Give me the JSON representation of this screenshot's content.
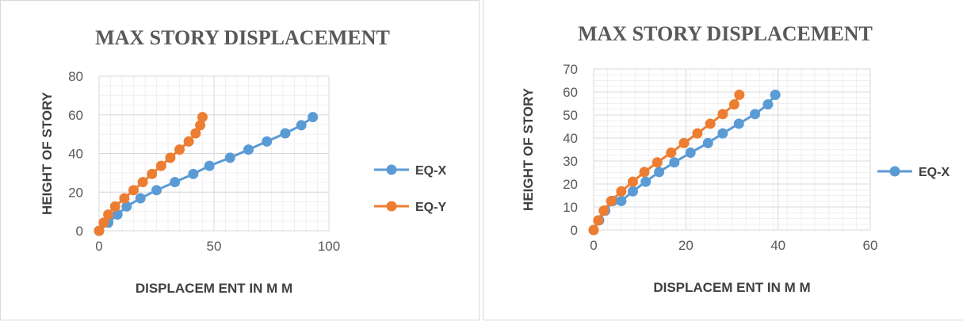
{
  "chart_data": [
    {
      "type": "scatter",
      "title": "MAX STORY DISPLACEMENT",
      "xlabel": "DISPLACEM ENT IN M M",
      "ylabel": "HEIGHT OF STORY",
      "xlim": [
        0,
        100
      ],
      "ylim": [
        0,
        80
      ],
      "xticks": [
        0,
        50,
        100
      ],
      "yticks": [
        0,
        20,
        40,
        60,
        80
      ],
      "grid": true,
      "legend_position": "right",
      "series": [
        {
          "name": "EQ-X",
          "color": "#5b9bd5",
          "x": [
            0,
            4,
            8,
            12,
            18,
            25,
            33,
            41,
            48,
            57,
            65,
            73,
            81,
            88,
            93
          ],
          "y": [
            0,
            4.2,
            8.4,
            12.6,
            16.8,
            21,
            25.2,
            29.4,
            33.6,
            37.8,
            42,
            46.2,
            50.4,
            54.6,
            58.8
          ]
        },
        {
          "name": "EQ-Y",
          "color": "#ed7d31",
          "x": [
            0,
            2,
            4,
            7,
            11,
            15,
            19,
            23,
            27,
            31,
            35,
            39,
            42,
            44,
            45
          ],
          "y": [
            0,
            4.2,
            8.4,
            12.6,
            16.8,
            21,
            25.2,
            29.4,
            33.6,
            37.8,
            42,
            46.2,
            50.4,
            54.6,
            58.8
          ]
        }
      ]
    },
    {
      "type": "scatter",
      "title": "MAX STORY DISPLACEMENT",
      "xlabel": "DISPLACEM ENT IN M M",
      "ylabel": "HEIGHT OF STORY",
      "xlim": [
        0,
        60
      ],
      "ylim": [
        0,
        70
      ],
      "xticks": [
        0,
        20,
        40,
        60
      ],
      "yticks": [
        0,
        10,
        20,
        30,
        40,
        50,
        60,
        70
      ],
      "grid": true,
      "legend_position": "right",
      "series": [
        {
          "name": "EQ-X",
          "color": "#5b9bd5",
          "x": [
            0,
            1.2,
            2.5,
            4.2,
            6,
            8.5,
            11.3,
            14.2,
            17.5,
            21,
            24.8,
            28,
            31.5,
            35,
            37.8,
            39.4
          ],
          "y": [
            0,
            4.2,
            8.4,
            12.6,
            12.6,
            16.8,
            21,
            25.2,
            29.4,
            33.6,
            37.8,
            42,
            46.2,
            50.4,
            54.6,
            58.8
          ]
        },
        {
          "name": "EQ-X",
          "color": "#ed7d31",
          "show_in_legend": false,
          "x": [
            0,
            1,
            2.2,
            3.8,
            6,
            8.5,
            11,
            13.8,
            16.8,
            19.6,
            22.5,
            25.3,
            28,
            30.5,
            31.6
          ],
          "y": [
            0,
            4.2,
            8.4,
            12.6,
            16.8,
            21,
            25.2,
            29.4,
            33.6,
            37.8,
            42,
            46.2,
            50.4,
            54.6,
            58.8
          ]
        }
      ]
    }
  ]
}
